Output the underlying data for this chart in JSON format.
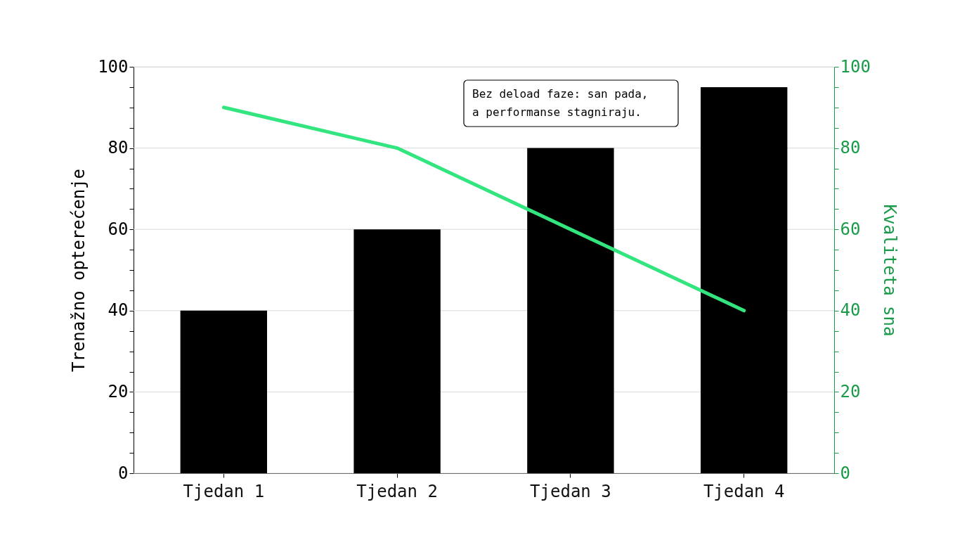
{
  "chart_data": {
    "type": "bar",
    "categories": [
      "Tjedan 1",
      "Tjedan 2",
      "Tjedan 3",
      "Tjedan 4"
    ],
    "ylabel": "Trenažno opterećenje",
    "y2label": "Kvaliteta sna",
    "series": [
      {
        "color": "#000000",
        "values": [
          40,
          60,
          80,
          95
        ]
      },
      {
        "type": "line",
        "axis": "y2",
        "color": "#33e57f",
        "values": [
          90,
          80,
          60,
          40
        ]
      }
    ],
    "ylim": [
      0,
      100
    ],
    "yticks": [
      0,
      {
        "value": 5,
        "label": null
      },
      {
        "value": 10,
        "label": null
      },
      {
        "value": 15,
        "label": null
      },
      20,
      {
        "value": 25,
        "label": null
      },
      {
        "value": 30,
        "label": null
      },
      {
        "value": 35,
        "label": null
      },
      40,
      {
        "value": 45,
        "label": null
      },
      {
        "value": 50,
        "label": null
      },
      {
        "value": 55,
        "label": null
      },
      60,
      {
        "value": 65,
        "label": null
      },
      {
        "value": 70,
        "label": null
      },
      {
        "value": 75,
        "label": null
      },
      80,
      {
        "value": 85,
        "label": null
      },
      {
        "value": 90,
        "label": null
      },
      {
        "value": 95,
        "label": null
      },
      100
    ],
    "y2lim": [
      0,
      100
    ],
    "y2ticks": [
      0,
      {
        "value": 5,
        "label": null
      },
      {
        "value": 10,
        "label": null
      },
      {
        "value": 15,
        "label": null
      },
      20,
      {
        "value": 25,
        "label": null
      },
      {
        "value": 30,
        "label": null
      },
      {
        "value": 35,
        "label": null
      },
      40,
      {
        "value": 45,
        "label": null
      },
      {
        "value": 50,
        "label": null
      },
      {
        "value": 55,
        "label": null
      },
      60,
      {
        "value": 65,
        "label": null
      },
      {
        "value": 70,
        "label": null
      },
      {
        "value": 75,
        "label": null
      },
      80,
      {
        "value": 85,
        "label": null
      },
      {
        "value": 90,
        "label": null
      },
      {
        "value": 95,
        "label": null
      },
      100
    ],
    "grid": "y",
    "marker": "none",
    "annotations": [
      "Bez deload faze: san pada,\na performanse stagniraju."
    ]
  }
}
